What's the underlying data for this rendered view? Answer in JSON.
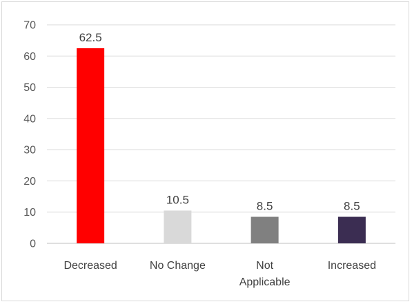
{
  "chart_data": {
    "type": "bar",
    "title": "",
    "xlabel": "",
    "ylabel": "",
    "categories": [
      "Decreased",
      "No Change",
      "Not Applicable",
      "Increased"
    ],
    "category_lines": [
      [
        "Decreased"
      ],
      [
        "No Change"
      ],
      [
        "Not",
        "Applicable"
      ],
      [
        "Increased"
      ]
    ],
    "values": [
      62.5,
      10.5,
      8.5,
      8.5
    ],
    "data_labels": [
      "62.5",
      "10.5",
      "8.5",
      "8.5"
    ],
    "colors": [
      "#ff0000",
      "#d9d9d9",
      "#808080",
      "#3b2d52"
    ],
    "ylim": [
      0,
      70
    ],
    "yticks": [
      0,
      10,
      20,
      30,
      40,
      50,
      60,
      70
    ],
    "grid": true,
    "legend": "none"
  }
}
